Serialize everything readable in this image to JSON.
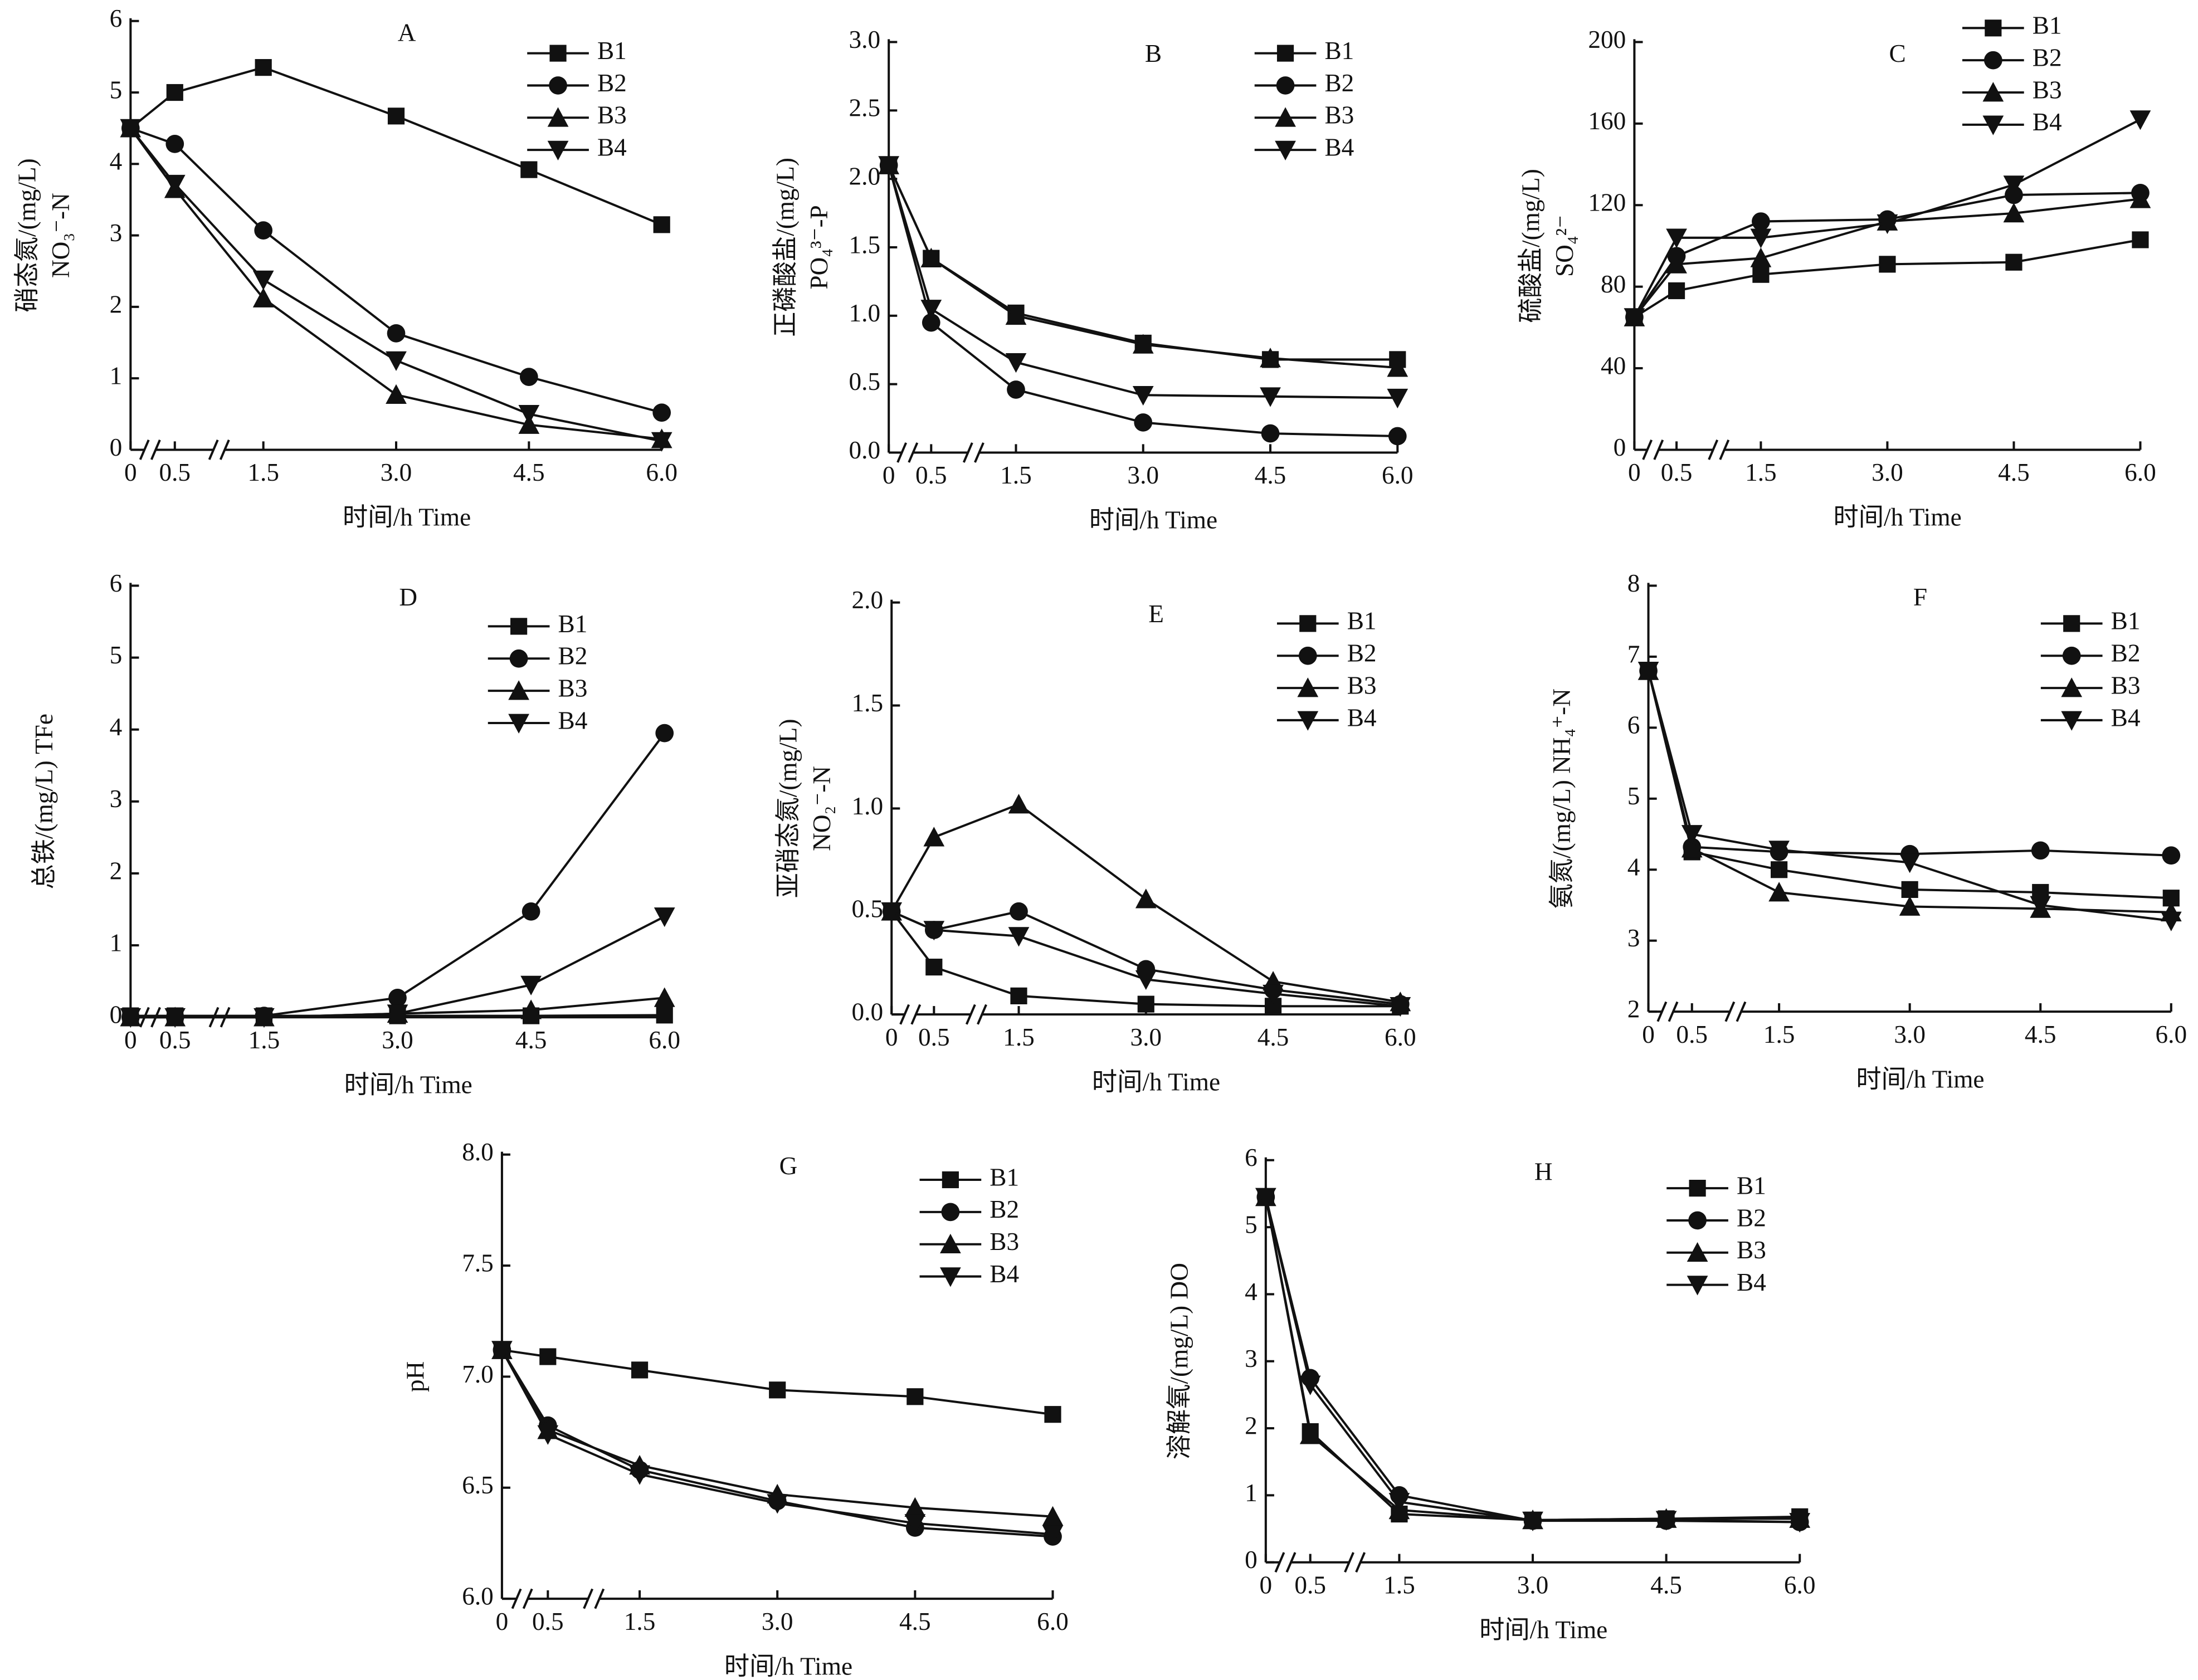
{
  "chart_data": [
    {
      "type": "line",
      "title": "A",
      "x_label": "时间/h Time",
      "y_label": [
        "硝态氮/(mg/L)",
        "NO₃⁻-N"
      ],
      "x": [
        0,
        0.5,
        1.5,
        3,
        4.5,
        6
      ],
      "xlim": [
        0,
        6
      ],
      "xticks": [
        0,
        0.5,
        1.5,
        {
          "value": 3,
          "label": "3.0"
        },
        4.5,
        {
          "value": 6,
          "label": "6.0"
        }
      ],
      "ylim": [
        0,
        6
      ],
      "yticks": [
        0,
        1,
        2,
        3,
        4,
        5,
        6
      ],
      "series": [
        {
          "name": "B1",
          "marker": "square",
          "color": "#111111",
          "values": [
            4.5,
            5.0,
            5.35,
            4.67,
            3.92,
            3.15
          ]
        },
        {
          "name": "B2",
          "marker": "circle",
          "color": "#111111",
          "values": [
            4.5,
            4.28,
            3.07,
            1.63,
            1.02,
            0.52
          ]
        },
        {
          "name": "B3",
          "marker": "triangle-up",
          "color": "#111111",
          "values": [
            4.5,
            3.65,
            2.12,
            0.77,
            0.35,
            0.15
          ]
        },
        {
          "name": "B4",
          "marker": "triangle-down",
          "color": "#111111",
          "values": [
            4.5,
            3.72,
            2.38,
            1.25,
            0.5,
            0.12
          ]
        }
      ]
    },
    {
      "type": "line",
      "title": "B",
      "x_label": "时间/h Time",
      "y_label": [
        "正磷酸盐/(mg/L)",
        "PO₄³⁻-P"
      ],
      "x": [
        0,
        0.5,
        1.5,
        3,
        4.5,
        6
      ],
      "xlim": [
        0,
        6
      ],
      "xticks": [
        0,
        0.5,
        1.5,
        {
          "value": 3,
          "label": "3.0"
        },
        4.5,
        {
          "value": 6,
          "label": "6.0"
        }
      ],
      "ylim": [
        0,
        3
      ],
      "yticks": [
        {
          "value": 0,
          "label": "0.0"
        },
        0.5,
        {
          "value": 1,
          "label": "1.0"
        },
        1.5,
        {
          "value": 2,
          "label": "2.0"
        },
        2.5,
        {
          "value": 3,
          "label": "3.0"
        }
      ],
      "series": [
        {
          "name": "B1",
          "marker": "square",
          "color": "#111111",
          "values": [
            2.1,
            1.42,
            1.02,
            0.8,
            0.68,
            0.68
          ]
        },
        {
          "name": "B2",
          "marker": "circle",
          "color": "#111111",
          "values": [
            2.1,
            0.95,
            0.46,
            0.22,
            0.14,
            0.12
          ]
        },
        {
          "name": "B3",
          "marker": "triangle-up",
          "color": "#111111",
          "values": [
            2.1,
            1.42,
            1.0,
            0.79,
            0.69,
            0.62
          ]
        },
        {
          "name": "B4",
          "marker": "triangle-down",
          "color": "#111111",
          "values": [
            2.1,
            1.05,
            0.66,
            0.42,
            0.41,
            0.4
          ]
        }
      ]
    },
    {
      "type": "line",
      "title": "C",
      "x_label": "时间/h Time",
      "y_label": [
        "硫酸盐/(mg/L)",
        "SO₄²⁻"
      ],
      "x": [
        0,
        0.5,
        1.5,
        3,
        4.5,
        6
      ],
      "xlim": [
        0,
        6
      ],
      "xticks": [
        0,
        0.5,
        1.5,
        {
          "value": 3,
          "label": "3.0"
        },
        4.5,
        {
          "value": 6,
          "label": "6.0"
        }
      ],
      "ylim": [
        0,
        200
      ],
      "yticks": [
        0,
        40,
        80,
        120,
        160,
        200
      ],
      "series": [
        {
          "name": "B1",
          "marker": "square",
          "color": "#111111",
          "values": [
            65,
            78,
            86,
            91,
            92,
            103
          ]
        },
        {
          "name": "B2",
          "marker": "circle",
          "color": "#111111",
          "values": [
            65,
            95,
            112,
            113,
            125,
            126
          ]
        },
        {
          "name": "B3",
          "marker": "triangle-up",
          "color": "#111111",
          "values": [
            65,
            91,
            94,
            112,
            116,
            123
          ]
        },
        {
          "name": "B4",
          "marker": "triangle-down",
          "color": "#111111",
          "values": [
            65,
            104,
            104,
            111,
            130,
            162
          ]
        }
      ]
    },
    {
      "type": "line",
      "title": "D",
      "x_label": "时间/h Time",
      "y_label": [
        "总铁/(mg/L)  TFe"
      ],
      "x": [
        0,
        0.5,
        1.5,
        3,
        4.5,
        6
      ],
      "xlim": [
        0,
        6
      ],
      "xticks": [
        0,
        0.5,
        1.5,
        {
          "value": 3,
          "label": "3.0"
        },
        4.5,
        {
          "value": 6,
          "label": "6.0"
        }
      ],
      "ylim": [
        0,
        6
      ],
      "yticks": [
        0,
        1,
        2,
        3,
        4,
        5,
        6
      ],
      "series": [
        {
          "name": "B1",
          "marker": "square",
          "color": "#111111",
          "values": [
            0.02,
            0.02,
            0.02,
            0.02,
            0.02,
            0.03
          ]
        },
        {
          "name": "B2",
          "marker": "circle",
          "color": "#111111",
          "values": [
            0,
            0,
            0.02,
            0.27,
            1.47,
            3.95
          ]
        },
        {
          "name": "B3",
          "marker": "triangle-up",
          "color": "#111111",
          "values": [
            0,
            0,
            0,
            0.05,
            0.1,
            0.27
          ]
        },
        {
          "name": "B4",
          "marker": "triangle-down",
          "color": "#111111",
          "values": [
            0,
            0,
            0,
            0.05,
            0.45,
            1.4
          ]
        }
      ]
    },
    {
      "type": "line",
      "title": "E",
      "x_label": "时间/h Time",
      "y_label": [
        "亚硝态氮/(mg/L)",
        "NO₂⁻-N"
      ],
      "x": [
        0,
        0.5,
        1.5,
        3,
        4.5,
        6
      ],
      "xlim": [
        0,
        6
      ],
      "xticks": [
        0,
        0.5,
        1.5,
        {
          "value": 3,
          "label": "3.0"
        },
        4.5,
        {
          "value": 6,
          "label": "6.0"
        }
      ],
      "ylim": [
        0,
        2
      ],
      "yticks": [
        {
          "value": 0,
          "label": "0.0"
        },
        0.5,
        {
          "value": 1,
          "label": "1.0"
        },
        1.5,
        {
          "value": 2,
          "label": "2.0"
        }
      ],
      "series": [
        {
          "name": "B1",
          "marker": "square",
          "color": "#111111",
          "values": [
            0.5,
            0.23,
            0.09,
            0.05,
            0.04,
            0.04
          ]
        },
        {
          "name": "B2",
          "marker": "circle",
          "color": "#111111",
          "values": [
            0.5,
            0.41,
            0.5,
            0.22,
            0.12,
            0.05
          ]
        },
        {
          "name": "B3",
          "marker": "triangle-up",
          "color": "#111111",
          "values": [
            0.5,
            0.86,
            1.02,
            0.56,
            0.16,
            0.06
          ]
        },
        {
          "name": "B4",
          "marker": "triangle-down",
          "color": "#111111",
          "values": [
            0.5,
            0.41,
            0.38,
            0.17,
            0.1,
            0.04
          ]
        }
      ]
    },
    {
      "type": "line",
      "title": "F",
      "x_label": "时间/h Time",
      "y_label": [
        "氨氮/(mg/L)  NH₄⁺-N"
      ],
      "x": [
        0,
        0.5,
        1.5,
        3,
        4.5,
        6
      ],
      "xlim": [
        0,
        6
      ],
      "xticks": [
        0,
        0.5,
        1.5,
        {
          "value": 3,
          "label": "3.0"
        },
        4.5,
        {
          "value": 6,
          "label": "6.0"
        }
      ],
      "ylim": [
        2,
        8
      ],
      "yticks": [
        2,
        3,
        4,
        5,
        6,
        7,
        8
      ],
      "series": [
        {
          "name": "B1",
          "marker": "square",
          "color": "#111111",
          "values": [
            6.8,
            4.25,
            4.0,
            3.72,
            3.68,
            3.6
          ]
        },
        {
          "name": "B2",
          "marker": "circle",
          "color": "#111111",
          "values": [
            6.8,
            4.32,
            4.25,
            4.22,
            4.27,
            4.2
          ]
        },
        {
          "name": "B3",
          "marker": "triangle-up",
          "color": "#111111",
          "values": [
            6.8,
            4.3,
            3.68,
            3.48,
            3.45,
            3.4
          ]
        },
        {
          "name": "B4",
          "marker": "triangle-down",
          "color": "#111111",
          "values": [
            6.8,
            4.5,
            4.28,
            4.1,
            3.5,
            3.28
          ]
        }
      ]
    },
    {
      "type": "line",
      "title": "G",
      "x_label": "时间/h Time",
      "y_label": [
        "pH"
      ],
      "x": [
        0,
        0.5,
        1.5,
        3,
        4.5,
        6
      ],
      "xlim": [
        0,
        6
      ],
      "xticks": [
        0,
        0.5,
        1.5,
        {
          "value": 3,
          "label": "3.0"
        },
        4.5,
        {
          "value": 6,
          "label": "6.0"
        }
      ],
      "ylim": [
        6,
        8
      ],
      "yticks": [
        {
          "value": 6,
          "label": "6.0"
        },
        6.5,
        {
          "value": 7,
          "label": "7.0"
        },
        7.5,
        {
          "value": 8,
          "label": "8.0"
        }
      ],
      "series": [
        {
          "name": "B1",
          "marker": "square",
          "color": "#111111",
          "values": [
            7.12,
            7.09,
            7.03,
            6.94,
            6.91,
            6.83
          ]
        },
        {
          "name": "B2",
          "marker": "circle",
          "color": "#111111",
          "values": [
            7.12,
            6.78,
            6.58,
            6.44,
            6.32,
            6.28
          ]
        },
        {
          "name": "B3",
          "marker": "triangle-up",
          "color": "#111111",
          "values": [
            7.12,
            6.76,
            6.6,
            6.47,
            6.41,
            6.37
          ]
        },
        {
          "name": "B4",
          "marker": "triangle-down",
          "color": "#111111",
          "values": [
            7.12,
            6.74,
            6.56,
            6.43,
            6.34,
            6.29
          ]
        }
      ]
    },
    {
      "type": "line",
      "title": "H",
      "x_label": "时间/h Time",
      "y_label": [
        "溶解氧/(mg/L)  DO"
      ],
      "x": [
        0,
        0.5,
        1.5,
        3,
        4.5,
        6
      ],
      "xlim": [
        0,
        6
      ],
      "xticks": [
        0,
        0.5,
        1.5,
        {
          "value": 3,
          "label": "3.0"
        },
        4.5,
        {
          "value": 6,
          "label": "6.0"
        }
      ],
      "ylim": [
        0,
        6
      ],
      "yticks": [
        0,
        1,
        2,
        3,
        4,
        5,
        6
      ],
      "series": [
        {
          "name": "B1",
          "marker": "square",
          "color": "#111111",
          "values": [
            5.45,
            1.95,
            0.72,
            0.63,
            0.65,
            0.68
          ]
        },
        {
          "name": "B2",
          "marker": "circle",
          "color": "#111111",
          "values": [
            5.45,
            2.75,
            1.0,
            0.62,
            0.62,
            0.6
          ]
        },
        {
          "name": "B3",
          "marker": "triangle-up",
          "color": "#111111",
          "values": [
            5.45,
            1.9,
            0.78,
            0.63,
            0.65,
            0.65
          ]
        },
        {
          "name": "B4",
          "marker": "triangle-down",
          "color": "#111111",
          "values": [
            5.45,
            2.65,
            0.9,
            0.62,
            0.63,
            0.6
          ]
        }
      ]
    }
  ]
}
